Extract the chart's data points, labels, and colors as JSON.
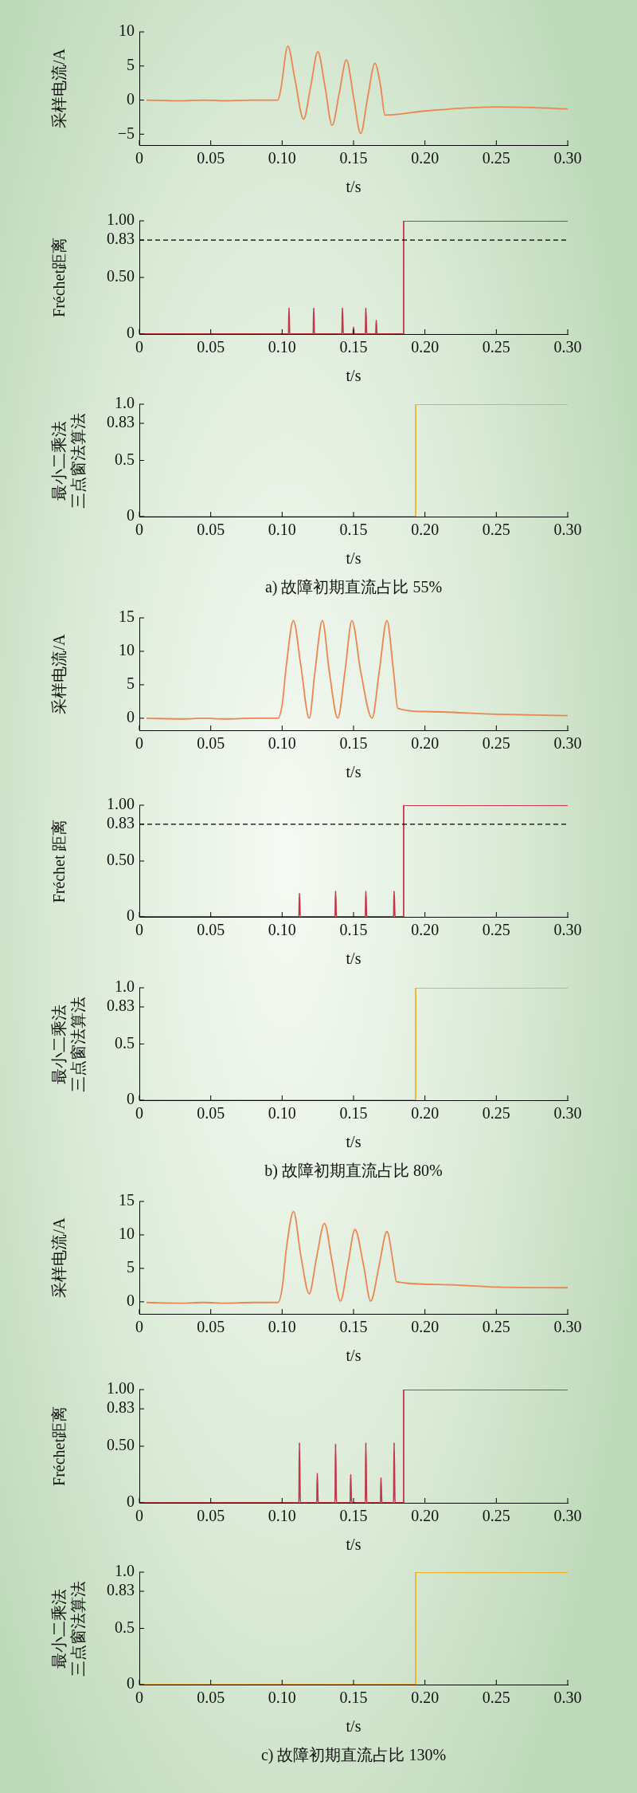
{
  "chart_data": [
    {
      "type": "line",
      "ylabel": "采样电流/A",
      "xlabel": "t/s",
      "xlim": [
        0,
        0.3
      ],
      "xticks": [
        0,
        0.05,
        {
          "value": 0.1,
          "label": "0.10"
        },
        0.15,
        {
          "value": 0.2,
          "label": "0.20"
        },
        0.25,
        {
          "value": 0.3,
          "label": "0.30"
        }
      ],
      "ylim": [
        -6.6,
        10
      ],
      "yticks": [
        {
          "value": -5,
          "label": "−5"
        },
        0,
        5,
        10
      ],
      "series": [
        {
          "color": "#ec8650",
          "x": [
            0.005,
            0.03,
            0.045,
            0.06,
            0.08,
            0.097,
            0.099,
            0.104,
            0.109,
            0.115,
            0.12,
            0.125,
            0.13,
            0.135,
            0.14,
            0.145,
            0.15,
            0.155,
            0.16,
            0.165,
            0.169,
            0.172,
            0.2,
            0.225,
            0.25,
            0.275,
            0.3
          ],
          "values": [
            0,
            -0.1,
            0,
            -0.1,
            0,
            0,
            1.5,
            7.9,
            3,
            -2.8,
            2,
            7.1,
            2,
            -3.7,
            1,
            5.9,
            0.5,
            -4.9,
            0.5,
            5.4,
            2,
            -2.2,
            -1.6,
            -1.2,
            -1.0,
            -1.1,
            -1.3
          ]
        }
      ]
    },
    {
      "type": "line",
      "ylabel": "Fréchet距离",
      "xlabel": "t/s",
      "xlim": [
        0,
        0.3
      ],
      "xticks": [
        0,
        0.05,
        {
          "value": 0.1,
          "label": "0.10"
        },
        0.15,
        {
          "value": 0.2,
          "label": "0.20"
        },
        0.25,
        {
          "value": 0.3,
          "label": "0.30"
        }
      ],
      "ylim": [
        0,
        1
      ],
      "yticks": [
        0,
        {
          "value": 0.5,
          "label": "0.50"
        },
        0.83,
        {
          "value": 1,
          "label": "1.00"
        }
      ],
      "ref_lines": [
        {
          "axis": "y",
          "value": 0.83,
          "line_style": "dashed",
          "color": "#000000"
        }
      ],
      "series": [
        {
          "color": "#c0384a",
          "x": [
            0,
            0.1045,
            0.1048,
            0.1053,
            0.1218,
            0.1221,
            0.1226,
            0.1419,
            0.1422,
            0.1428,
            0.1497,
            0.15,
            0.1504,
            0.1583,
            0.1586,
            0.1592,
            0.1656,
            0.1659,
            0.1664,
            0.1851,
            0.1851,
            0.3
          ],
          "values": [
            0,
            0,
            0.23,
            0,
            0,
            0.23,
            0,
            0,
            0.23,
            0,
            0,
            0.06,
            0,
            0,
            0.23,
            0,
            0,
            0.12,
            0,
            0,
            1,
            1
          ]
        }
      ]
    },
    {
      "type": "line",
      "ylabel": "最小二乘法三点窗法算法",
      "xlabel": "t/s",
      "xlim": [
        0,
        0.3
      ],
      "xticks": [
        0,
        0.05,
        {
          "value": 0.1,
          "label": "0.10"
        },
        0.15,
        {
          "value": 0.2,
          "label": "0.20"
        },
        0.25,
        {
          "value": 0.3,
          "label": "0.30"
        }
      ],
      "ylim": [
        0,
        1
      ],
      "yticks": [
        0,
        0.5,
        0.83,
        {
          "value": 1,
          "label": "1.0"
        }
      ],
      "annotations": [
        "a) 故障初期直流占比 55%"
      ],
      "series": [
        {
          "color": "#f0b02a",
          "x": [
            0,
            0.1935,
            0.1935,
            0.3
          ],
          "values": [
            0,
            0,
            1,
            1
          ]
        }
      ]
    },
    {
      "type": "line",
      "ylabel": "采样电流/A",
      "xlabel": "t/s",
      "xlim": [
        0,
        0.3
      ],
      "xticks": [
        0,
        0.05,
        {
          "value": 0.1,
          "label": "0.10"
        },
        0.15,
        {
          "value": 0.2,
          "label": "0.20"
        },
        0.25,
        {
          "value": 0.3,
          "label": "0.30"
        }
      ],
      "ylim": [
        -1.8,
        15
      ],
      "yticks": [
        0,
        5,
        10,
        15
      ],
      "series": [
        {
          "color": "#ec8650",
          "x": [
            0.005,
            0.03,
            0.045,
            0.06,
            0.08,
            0.097,
            0.1,
            0.103,
            0.1079,
            0.113,
            0.119,
            0.123,
            0.1282,
            0.133,
            0.139,
            0.144,
            0.1489,
            0.155,
            0.163,
            0.168,
            0.1734,
            0.178,
            0.181,
            0.2,
            0.25,
            0.3
          ],
          "values": [
            0,
            -0.1,
            0,
            -0.1,
            0,
            0,
            2,
            8,
            14.6,
            8,
            0,
            7,
            14.6,
            7,
            0,
            7,
            14.6,
            7,
            0,
            7,
            14.6,
            7,
            1.5,
            1,
            0.6,
            0.4
          ]
        }
      ]
    },
    {
      "type": "line",
      "ylabel": "Fréchet 距离",
      "xlabel": "t/s",
      "xlim": [
        0,
        0.3
      ],
      "xticks": [
        0,
        0.05,
        {
          "value": 0.1,
          "label": "0.10"
        },
        0.15,
        {
          "value": 0.2,
          "label": "0.20"
        },
        0.25,
        {
          "value": 0.3,
          "label": "0.30"
        }
      ],
      "ylim": [
        0,
        1
      ],
      "yticks": [
        0,
        {
          "value": 0.5,
          "label": "0.50"
        },
        0.83,
        {
          "value": 1,
          "label": "1.00"
        }
      ],
      "ref_lines": [
        {
          "axis": "y",
          "value": 0.83,
          "line_style": "dashed",
          "color": "#000000"
        }
      ],
      "series": [
        {
          "color": "#c0384a",
          "x": [
            0,
            0.1118,
            0.1121,
            0.1127,
            0.1371,
            0.1374,
            0.138,
            0.1583,
            0.1586,
            0.1592,
            0.1781,
            0.1784,
            0.179,
            0.1851,
            0.1851,
            0.3
          ],
          "values": [
            0,
            0,
            0.21,
            0,
            0,
            0.23,
            0,
            0,
            0.23,
            0,
            0,
            0.23,
            0,
            0,
            1,
            1
          ]
        }
      ]
    },
    {
      "type": "line",
      "ylabel": "最小二乘法三点窗法算法",
      "xlabel": "t/s",
      "xlim": [
        0,
        0.3
      ],
      "xticks": [
        0,
        0.05,
        {
          "value": 0.1,
          "label": "0.10"
        },
        0.15,
        {
          "value": 0.2,
          "label": "0.20"
        },
        0.25,
        {
          "value": 0.3,
          "label": "0.30"
        }
      ],
      "ylim": [
        0,
        1
      ],
      "yticks": [
        0,
        0.5,
        0.83,
        {
          "value": 1,
          "label": "1.0"
        }
      ],
      "annotations": [
        "b) 故障初期直流占比 80%"
      ],
      "series": [
        {
          "color": "#f0b02a",
          "x": [
            0,
            0.1935,
            0.1935,
            0.3
          ],
          "values": [
            0,
            0,
            1,
            1
          ]
        }
      ]
    },
    {
      "type": "line",
      "ylabel": "采样电流/A",
      "xlabel": "t/s",
      "xlim": [
        0,
        0.3
      ],
      "xticks": [
        0,
        0.05,
        {
          "value": 0.1,
          "label": "0.10"
        },
        0.15,
        {
          "value": 0.2,
          "label": "0.20"
        },
        0.25,
        {
          "value": 0.3,
          "label": "0.30"
        }
      ],
      "ylim": [
        -1.8,
        15
      ],
      "yticks": [
        0,
        5,
        10,
        15
      ],
      "series": [
        {
          "color": "#ec8650",
          "x": [
            0.005,
            0.03,
            0.045,
            0.06,
            0.08,
            0.097,
            0.1,
            0.103,
            0.108,
            0.113,
            0.119,
            0.124,
            0.1296,
            0.135,
            0.1408,
            0.146,
            0.151,
            0.157,
            0.162,
            0.168,
            0.1734,
            0.178,
            0.18,
            0.209,
            0.251,
            0.3
          ],
          "values": [
            -0.1,
            -0.2,
            -0.1,
            -0.2,
            -0.1,
            -0.1,
            2,
            8,
            13.5,
            7,
            1.2,
            6.5,
            11.7,
            6,
            0.1,
            5.5,
            10.8,
            5.5,
            0.1,
            5.5,
            10.5,
            5.5,
            3,
            2.6,
            2.2,
            2.1
          ]
        }
      ]
    },
    {
      "type": "line",
      "ylabel": "Fréchet距离",
      "xlabel": "t/s",
      "xlim": [
        0,
        0.3
      ],
      "xticks": [
        0,
        0.05,
        {
          "value": 0.1,
          "label": "0.10"
        },
        0.15,
        {
          "value": 0.2,
          "label": "0.20"
        },
        0.25,
        {
          "value": 0.3,
          "label": "0.30"
        }
      ],
      "ylim": [
        0,
        1
      ],
      "yticks": [
        0,
        {
          "value": 0.5,
          "label": "0.50"
        },
        0.83,
        {
          "value": 1,
          "label": "1.00"
        }
      ],
      "series": [
        {
          "color": "#c0384a",
          "x": [
            0,
            0.1118,
            0.1121,
            0.1127,
            0.1243,
            0.1246,
            0.1252,
            0.1371,
            0.1374,
            0.138,
            0.1477,
            0.148,
            0.1486,
            0.1583,
            0.1586,
            0.1592,
            0.1689,
            0.1692,
            0.1698,
            0.1781,
            0.1784,
            0.179,
            0.1851,
            0.1851,
            0.3
          ],
          "values": [
            0,
            0,
            0.53,
            0,
            0,
            0.26,
            0,
            0,
            0.52,
            0,
            0,
            0.25,
            0,
            0,
            0.53,
            0,
            0,
            0.22,
            0,
            0,
            0.53,
            0,
            0,
            1,
            1
          ]
        }
      ]
    },
    {
      "type": "line",
      "ylabel": "最小二乘法三点窗法算法",
      "xlabel": "t/s",
      "xlim": [
        0,
        0.3
      ],
      "xticks": [
        0,
        0.05,
        {
          "value": 0.1,
          "label": "0.10"
        },
        0.15,
        {
          "value": 0.2,
          "label": "0.20"
        },
        0.25,
        {
          "value": 0.3,
          "label": "0.30"
        }
      ],
      "ylim": [
        0,
        1
      ],
      "yticks": [
        0,
        0.5,
        0.83,
        {
          "value": 1,
          "label": "1.0"
        }
      ],
      "annotations": [
        "c) 故障初期直流占比 130%"
      ],
      "series": [
        {
          "color": "#f0b02a",
          "x": [
            0,
            0.1935,
            0.1935,
            0.3
          ],
          "values": [
            0,
            0,
            1,
            1
          ]
        }
      ]
    }
  ]
}
